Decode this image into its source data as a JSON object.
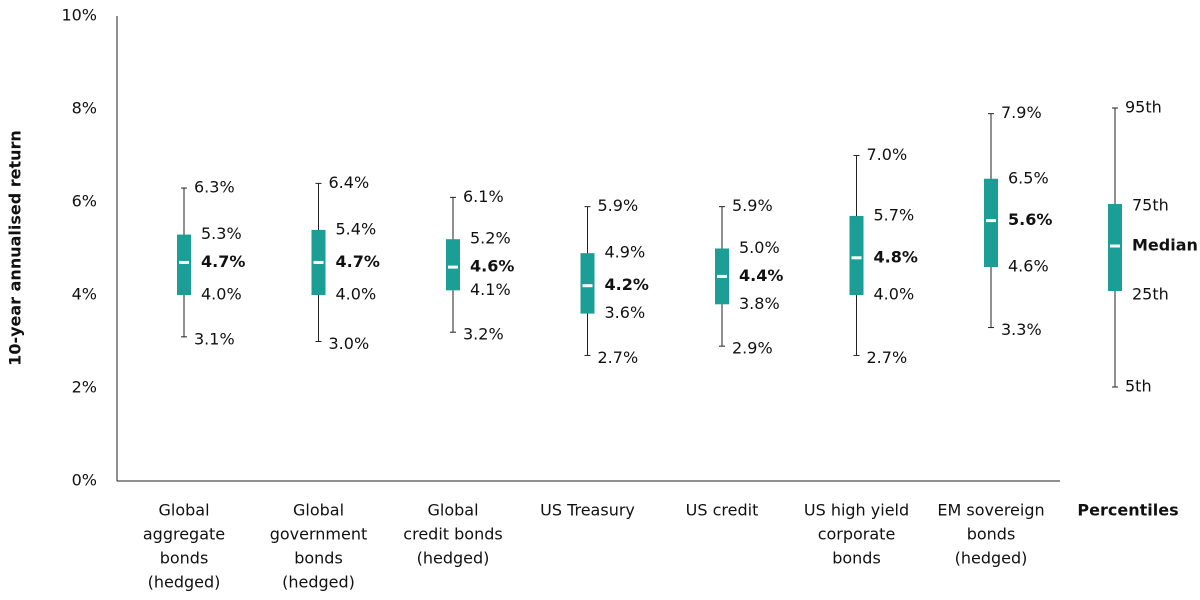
{
  "chart_data": {
    "type": "box",
    "y_label": "10-year annualised return",
    "categories": [
      [
        "Global",
        "aggregate",
        "bonds",
        "(hedged)"
      ],
      [
        "Global",
        "government",
        "bonds",
        "(hedged)"
      ],
      [
        "Global",
        "credit bonds",
        "(hedged)"
      ],
      [
        "US Treasury"
      ],
      [
        "US credit"
      ],
      [
        "US high yield",
        "corporate",
        "bonds"
      ],
      [
        "EM sovereign",
        "bonds",
        "(hedged)"
      ]
    ],
    "series": [
      {
        "name": "95th",
        "values": [
          6.3,
          6.4,
          6.1,
          5.9,
          5.9,
          7.0,
          7.9
        ],
        "value_labels": [
          "6.3%",
          "6.4%",
          "6.1%",
          "5.9%",
          "5.9%",
          "7.0%",
          "7.9%"
        ]
      },
      {
        "name": "75th",
        "values": [
          5.3,
          5.4,
          5.2,
          4.9,
          5.0,
          5.7,
          6.5
        ],
        "value_labels": [
          "5.3%",
          "5.4%",
          "5.2%",
          "4.9%",
          "5.0%",
          "5.7%",
          "6.5%"
        ]
      },
      {
        "name": "Median",
        "values": [
          4.7,
          4.7,
          4.6,
          4.2,
          4.4,
          4.8,
          5.6
        ],
        "value_labels": [
          "4.7%",
          "4.7%",
          "4.6%",
          "4.2%",
          "4.4%",
          "4.8%",
          "5.6%"
        ]
      },
      {
        "name": "25th",
        "values": [
          4.0,
          4.0,
          4.1,
          3.6,
          3.8,
          4.0,
          4.6
        ],
        "value_labels": [
          "4.0%",
          "4.0%",
          "4.1%",
          "3.6%",
          "3.8%",
          "4.0%",
          "4.6%"
        ]
      },
      {
        "name": "5th",
        "values": [
          3.1,
          3.0,
          3.2,
          2.7,
          2.9,
          2.7,
          3.3
        ],
        "value_labels": [
          "3.1%",
          "3.0%",
          "3.2%",
          "2.7%",
          "2.9%",
          "2.7%",
          "3.3%"
        ]
      }
    ],
    "legend_title": "Percentiles",
    "color": "#1a9e96",
    "ylim": [
      0,
      10
    ],
    "yticks": [
      {
        "value": 0,
        "label": "0%"
      },
      {
        "value": 2,
        "label": "2%"
      },
      {
        "value": 4,
        "label": "4%"
      },
      {
        "value": 6,
        "label": "6%"
      },
      {
        "value": 8,
        "label": "8%"
      },
      {
        "value": 10,
        "label": "10%"
      }
    ],
    "grid": false
  }
}
